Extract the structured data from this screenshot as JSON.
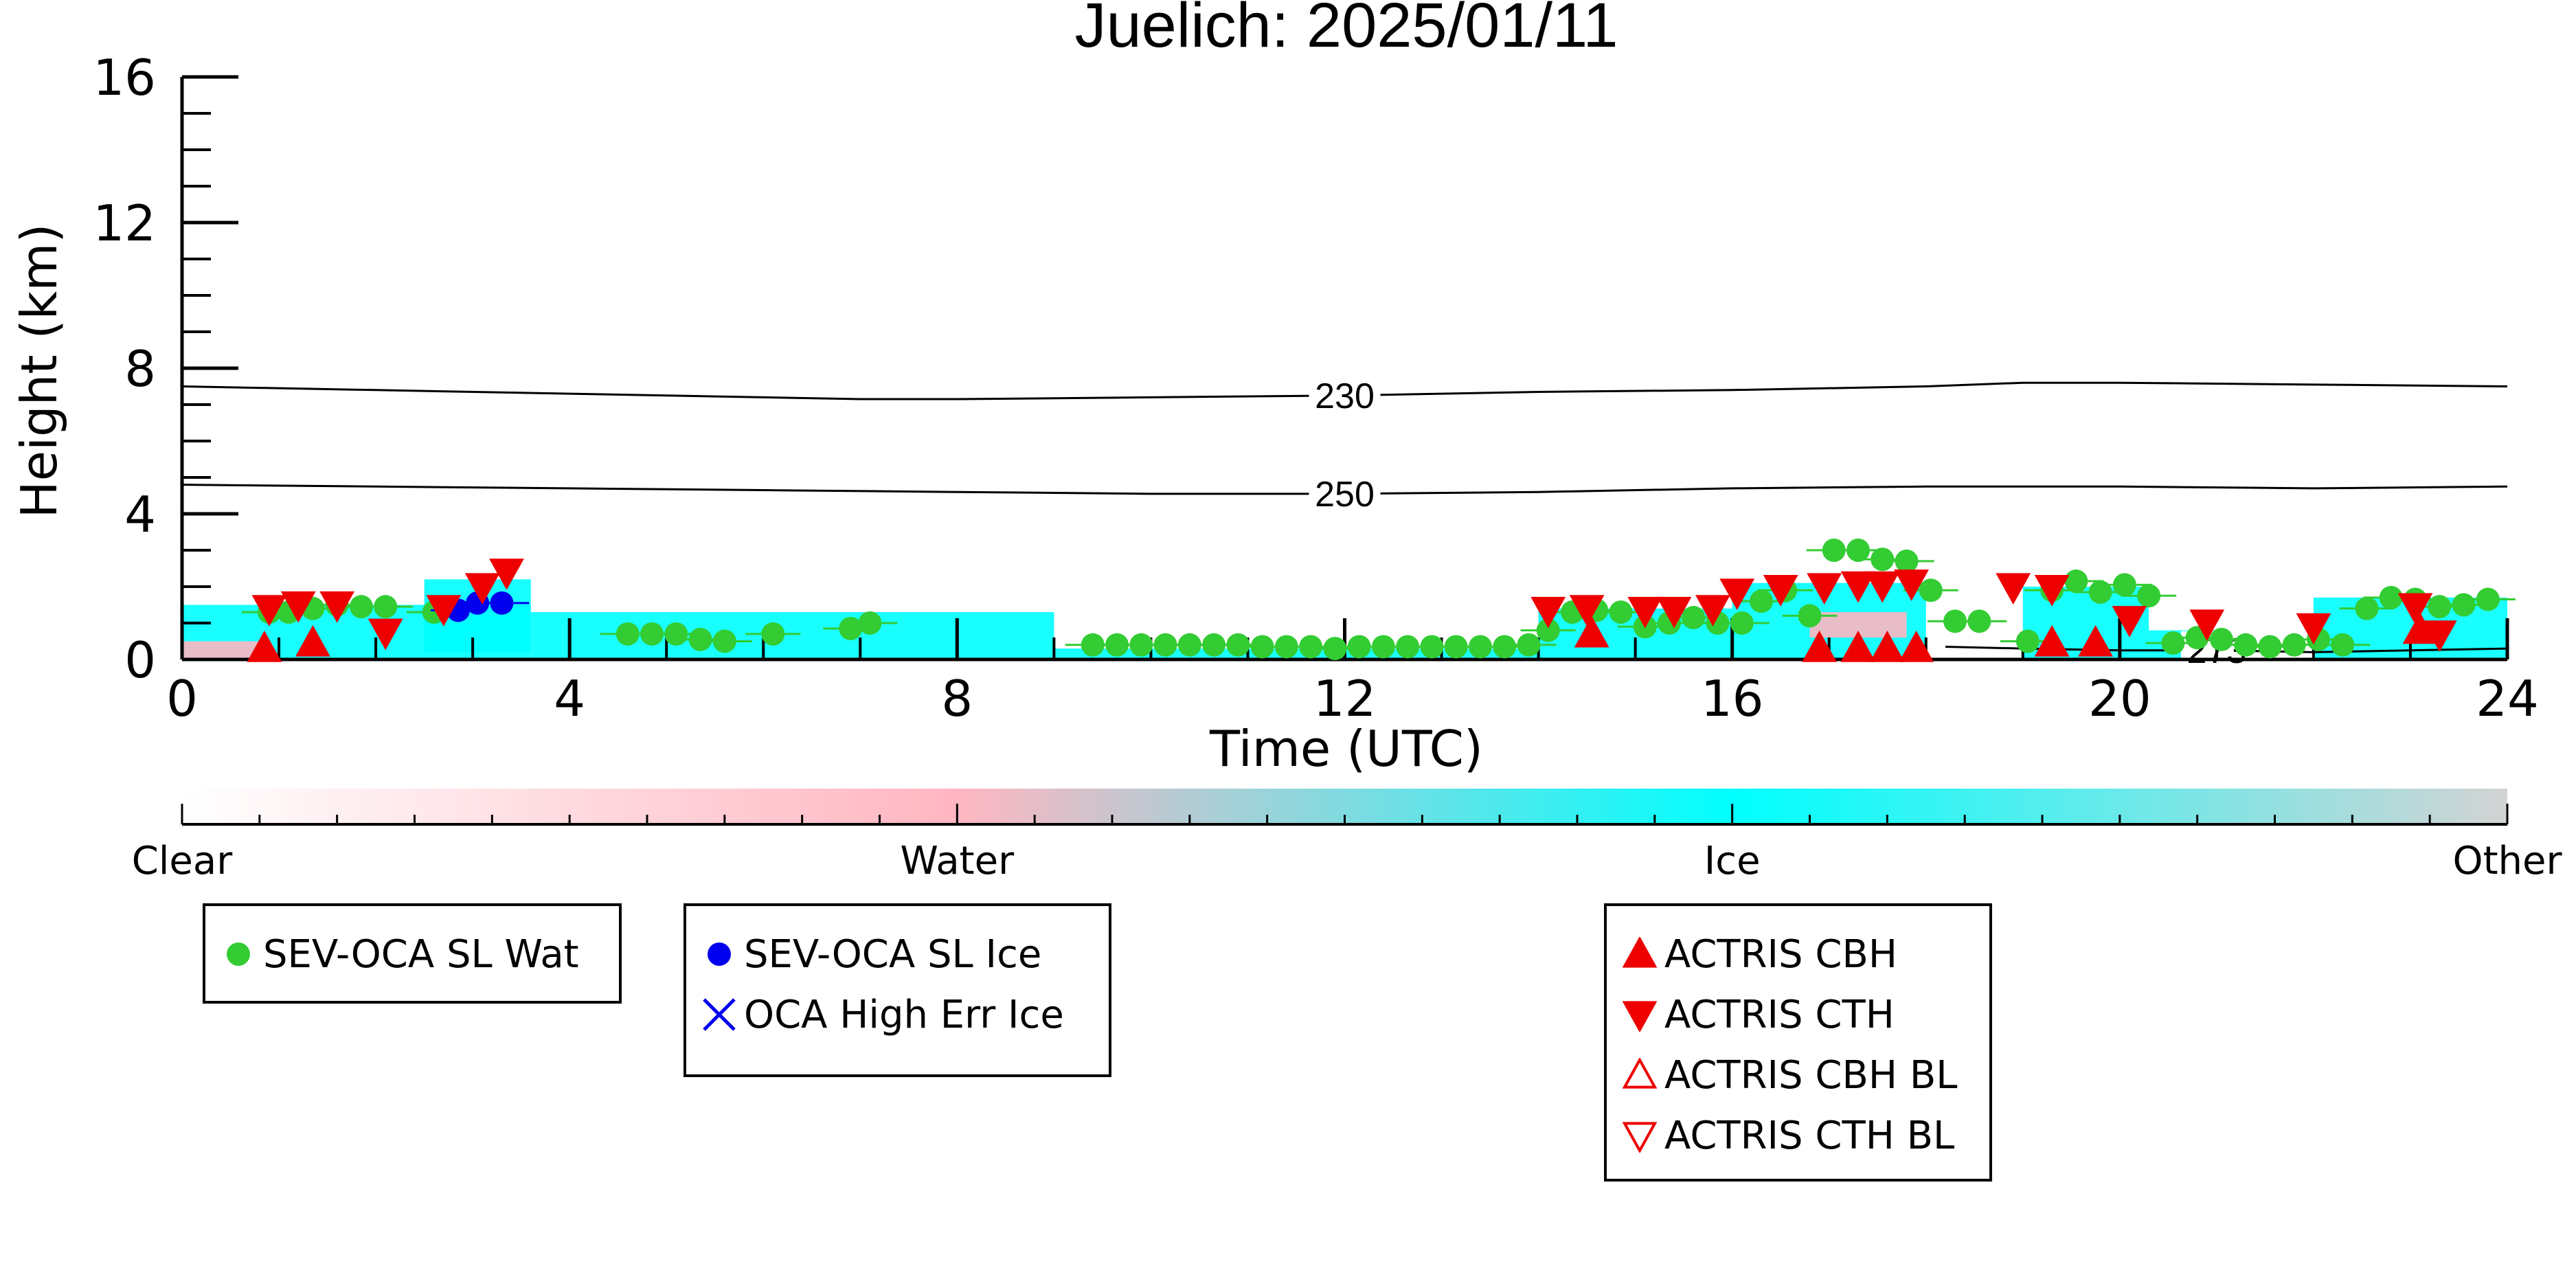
{
  "chart_data": {
    "type": "scatter",
    "title": "Juelich: 2025/01/11",
    "xlabel": "Time (UTC)",
    "ylabel": "Height (km)",
    "xlim": [
      0,
      24
    ],
    "ylim": [
      0,
      16
    ],
    "x_ticks": [
      0,
      4,
      8,
      12,
      16,
      20,
      24
    ],
    "y_ticks": [
      0,
      4,
      8,
      12,
      16
    ],
    "contours": [
      {
        "label": "230",
        "x": [
          0,
          2,
          4,
          6,
          7,
          8,
          10,
          12,
          14,
          16,
          18,
          19,
          20,
          22,
          24
        ],
        "y": [
          7.5,
          7.4,
          7.3,
          7.2,
          7.15,
          7.15,
          7.2,
          7.25,
          7.35,
          7.4,
          7.5,
          7.6,
          7.6,
          7.55,
          7.5
        ]
      },
      {
        "label": "250",
        "x": [
          0,
          2,
          4,
          6,
          8,
          10,
          12,
          14,
          16,
          18,
          20,
          22,
          24
        ],
        "y": [
          4.8,
          4.75,
          4.7,
          4.65,
          4.6,
          4.55,
          4.55,
          4.6,
          4.7,
          4.75,
          4.75,
          4.7,
          4.75
        ]
      },
      {
        "label": "273",
        "x": [
          18.2,
          19,
          20,
          21,
          22,
          23,
          24
        ],
        "y": [
          0.35,
          0.3,
          0.25,
          0.25,
          0.2,
          0.25,
          0.3
        ]
      }
    ],
    "cloud_regions": [
      {
        "phase": "Ice",
        "x0": 0.0,
        "x1": 3.6,
        "y0": 0.0,
        "y1": 1.5
      },
      {
        "phase": "Ice",
        "x0": 2.5,
        "x1": 3.6,
        "y0": 0.2,
        "y1": 2.2
      },
      {
        "phase": "Ice",
        "x0": 3.6,
        "x1": 9.0,
        "y0": 0.0,
        "y1": 1.3
      },
      {
        "phase": "Ice",
        "x0": 9.0,
        "x1": 14.0,
        "y0": 0.0,
        "y1": 0.3
      },
      {
        "phase": "Ice",
        "x0": 14.0,
        "x1": 16.0,
        "y0": 0.0,
        "y1": 1.4
      },
      {
        "phase": "Ice",
        "x0": 16.0,
        "x1": 18.0,
        "y0": 0.0,
        "y1": 2.1
      },
      {
        "phase": "Ice",
        "x0": 19.0,
        "x1": 20.3,
        "y0": 0.0,
        "y1": 2.0
      },
      {
        "phase": "Ice",
        "x0": 20.3,
        "x1": 21.0,
        "y0": 0.0,
        "y1": 0.8
      },
      {
        "phase": "Ice",
        "x0": 22.0,
        "x1": 24.0,
        "y0": 0.0,
        "y1": 1.7
      },
      {
        "phase": "Water",
        "x0": 0.0,
        "x1": 0.8,
        "y0": 0.0,
        "y1": 0.5
      },
      {
        "phase": "Water",
        "x0": 16.8,
        "x1": 17.8,
        "y0": 0.6,
        "y1": 1.3
      }
    ],
    "series": [
      {
        "name": "SEV-OCA SL Wat",
        "marker": "circle-filled",
        "color": "#33cc33",
        "x": [
          0.9,
          1.1,
          1.35,
          1.6,
          1.85,
          2.1,
          2.6,
          4.6,
          4.85,
          5.1,
          5.35,
          5.6,
          6.1,
          6.9,
          7.1,
          9.4,
          9.65,
          9.9,
          10.15,
          10.4,
          10.65,
          10.9,
          11.15,
          11.4,
          11.65,
          11.9,
          12.15,
          12.4,
          12.65,
          12.9,
          13.15,
          13.4,
          13.65,
          13.9,
          14.1,
          14.35,
          14.6,
          14.85,
          15.1,
          15.35,
          15.6,
          15.85,
          16.1,
          16.3,
          16.55,
          16.8,
          17.05,
          17.3,
          17.55,
          17.8,
          18.05,
          18.3,
          18.55,
          19.05,
          19.3,
          19.55,
          19.8,
          20.05,
          20.3,
          20.55,
          20.8,
          21.05,
          21.3,
          21.55,
          21.8,
          22.05,
          22.3,
          22.55,
          22.8,
          23.05,
          23.3,
          23.55,
          23.8
        ],
        "y": [
          1.3,
          1.3,
          1.4,
          1.5,
          1.45,
          1.45,
          1.3,
          0.7,
          0.7,
          0.7,
          0.55,
          0.5,
          0.7,
          0.85,
          1.0,
          0.4,
          0.4,
          0.4,
          0.4,
          0.4,
          0.4,
          0.4,
          0.35,
          0.35,
          0.35,
          0.3,
          0.35,
          0.35,
          0.35,
          0.35,
          0.35,
          0.35,
          0.35,
          0.4,
          0.8,
          1.3,
          1.35,
          1.3,
          0.9,
          1.0,
          1.15,
          1.0,
          1.0,
          1.6,
          1.9,
          1.2,
          3.0,
          3.0,
          2.75,
          2.7,
          1.9,
          1.05,
          1.05,
          0.5,
          1.9,
          2.15,
          1.85,
          2.05,
          1.75,
          0.45,
          0.6,
          0.55,
          0.4,
          0.35,
          0.4,
          0.55,
          0.4,
          1.4,
          1.7,
          1.65,
          1.45,
          1.5,
          1.65
        ]
      },
      {
        "name": "SEV-OCA SL Ice",
        "marker": "circle-filled",
        "color": "#0000ee",
        "x": [
          2.85,
          3.05,
          3.3
        ],
        "y": [
          1.35,
          1.55,
          1.55
        ]
      },
      {
        "name": "OCA High Err Ice",
        "marker": "x",
        "color": "#0000ee",
        "x": [],
        "y": []
      },
      {
        "name": "ACTRIS CBH",
        "marker": "triangle-up-filled",
        "color": "#ee0000",
        "x": [
          0.85,
          1.35,
          14.55,
          16.9,
          17.3,
          17.6,
          17.9,
          19.3,
          19.75,
          23.1
        ],
        "y": [
          0.3,
          0.45,
          0.7,
          0.3,
          0.3,
          0.3,
          0.3,
          0.45,
          0.45,
          0.8
        ]
      },
      {
        "name": "ACTRIS CTH",
        "marker": "triangle-down-filled",
        "color": "#ee0000",
        "x": [
          0.9,
          1.2,
          1.6,
          2.1,
          2.7,
          3.1,
          3.35,
          14.1,
          14.5,
          15.1,
          15.4,
          15.8,
          16.05,
          16.5,
          16.95,
          17.3,
          17.55,
          17.85,
          18.9,
          19.3,
          20.1,
          20.9,
          22.0,
          23.05,
          23.3
        ],
        "y": [
          1.4,
          1.5,
          1.5,
          0.75,
          1.4,
          2.0,
          2.4,
          1.35,
          1.4,
          1.35,
          1.35,
          1.4,
          1.85,
          1.95,
          2.0,
          2.05,
          2.05,
          2.1,
          2.0,
          1.95,
          1.1,
          1.0,
          0.9,
          1.45,
          0.7
        ]
      },
      {
        "name": "ACTRIS CBH BL",
        "marker": "triangle-up-open",
        "color": "#ee0000",
        "x": [],
        "y": []
      },
      {
        "name": "ACTRIS CTH BL",
        "marker": "triangle-down-open",
        "color": "#ee0000",
        "x": [],
        "y": []
      }
    ],
    "colorbar": {
      "labels": [
        "Clear",
        "Water",
        "Ice",
        "Other"
      ],
      "colors": [
        "#ffffff",
        "#ffb6c1",
        "#00ffff",
        "#d3d3d3"
      ]
    }
  },
  "legend": {
    "box1": [
      {
        "label": "SEV-OCA SL Wat",
        "marker": "circle-filled",
        "color": "#33cc33"
      }
    ],
    "box2": [
      {
        "label": "SEV-OCA SL Ice",
        "marker": "circle-filled",
        "color": "#0000ee"
      },
      {
        "label": "OCA High Err Ice",
        "marker": "x",
        "color": "#0000ee"
      }
    ],
    "box3": [
      {
        "label": "ACTRIS CBH",
        "marker": "triangle-up-filled",
        "color": "#ee0000"
      },
      {
        "label": "ACTRIS CTH",
        "marker": "triangle-down-filled",
        "color": "#ee0000"
      },
      {
        "label": "ACTRIS CBH BL",
        "marker": "triangle-up-open",
        "color": "#ee0000"
      },
      {
        "label": "ACTRIS CTH BL",
        "marker": "triangle-down-open",
        "color": "#ee0000"
      }
    ]
  }
}
